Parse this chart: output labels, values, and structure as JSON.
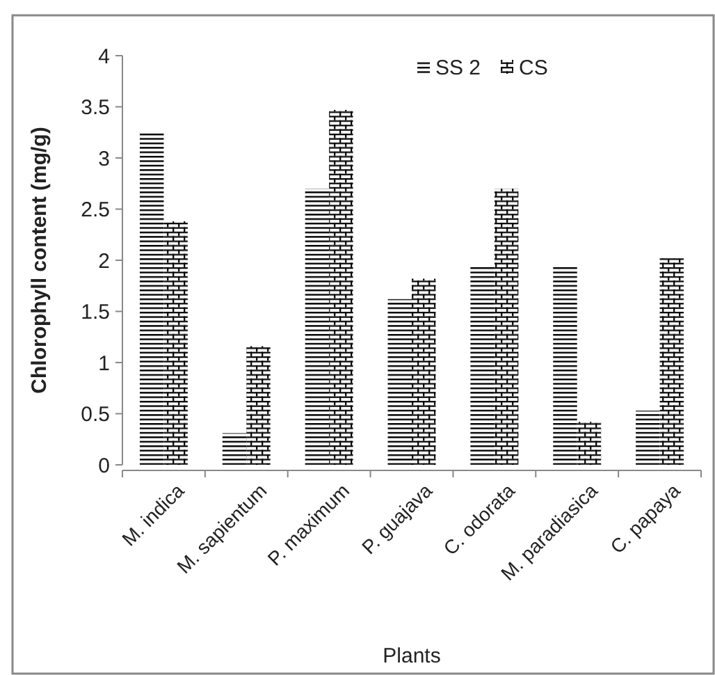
{
  "chart_data": {
    "type": "bar",
    "xlabel": "Plants",
    "ylabel": "Chlorophyll content (mg/g)",
    "categories": [
      "M. indica",
      "M. sapientum",
      "P. maximum",
      "P. guajava",
      "C. odorata",
      "M. paradiasica",
      "C. papaya"
    ],
    "series": [
      {
        "name": "SS 2",
        "color": "#000000",
        "values": [
          3.25,
          0.31,
          2.7,
          1.62,
          1.95,
          1.95,
          0.53
        ]
      },
      {
        "name": "CS",
        "color": "#000000",
        "values": [
          2.38,
          1.16,
          3.47,
          1.82,
          2.7,
          0.42,
          2.02
        ]
      }
    ],
    "ylim": [
      0,
      4
    ],
    "yticks": [
      0,
      0.5,
      1,
      1.5,
      2,
      2.5,
      3,
      3.5,
      4
    ],
    "grid": false,
    "legend": "top right"
  }
}
